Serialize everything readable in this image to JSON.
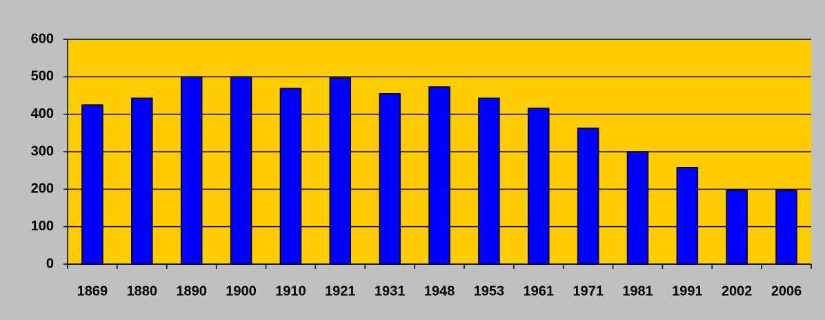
{
  "chart_data": {
    "type": "bar",
    "categories": [
      "1869",
      "1880",
      "1890",
      "1900",
      "1910",
      "1921",
      "1931",
      "1948",
      "1953",
      "1961",
      "1971",
      "1981",
      "1991",
      "2002",
      "2006"
    ],
    "values": [
      425,
      443,
      500,
      500,
      469,
      497,
      455,
      473,
      443,
      416,
      363,
      300,
      258,
      197,
      197
    ],
    "color": "#0000ff",
    "ylim": [
      0,
      600
    ],
    "yticks": [
      0,
      100,
      200,
      300,
      400,
      500,
      600
    ],
    "grid": true
  }
}
